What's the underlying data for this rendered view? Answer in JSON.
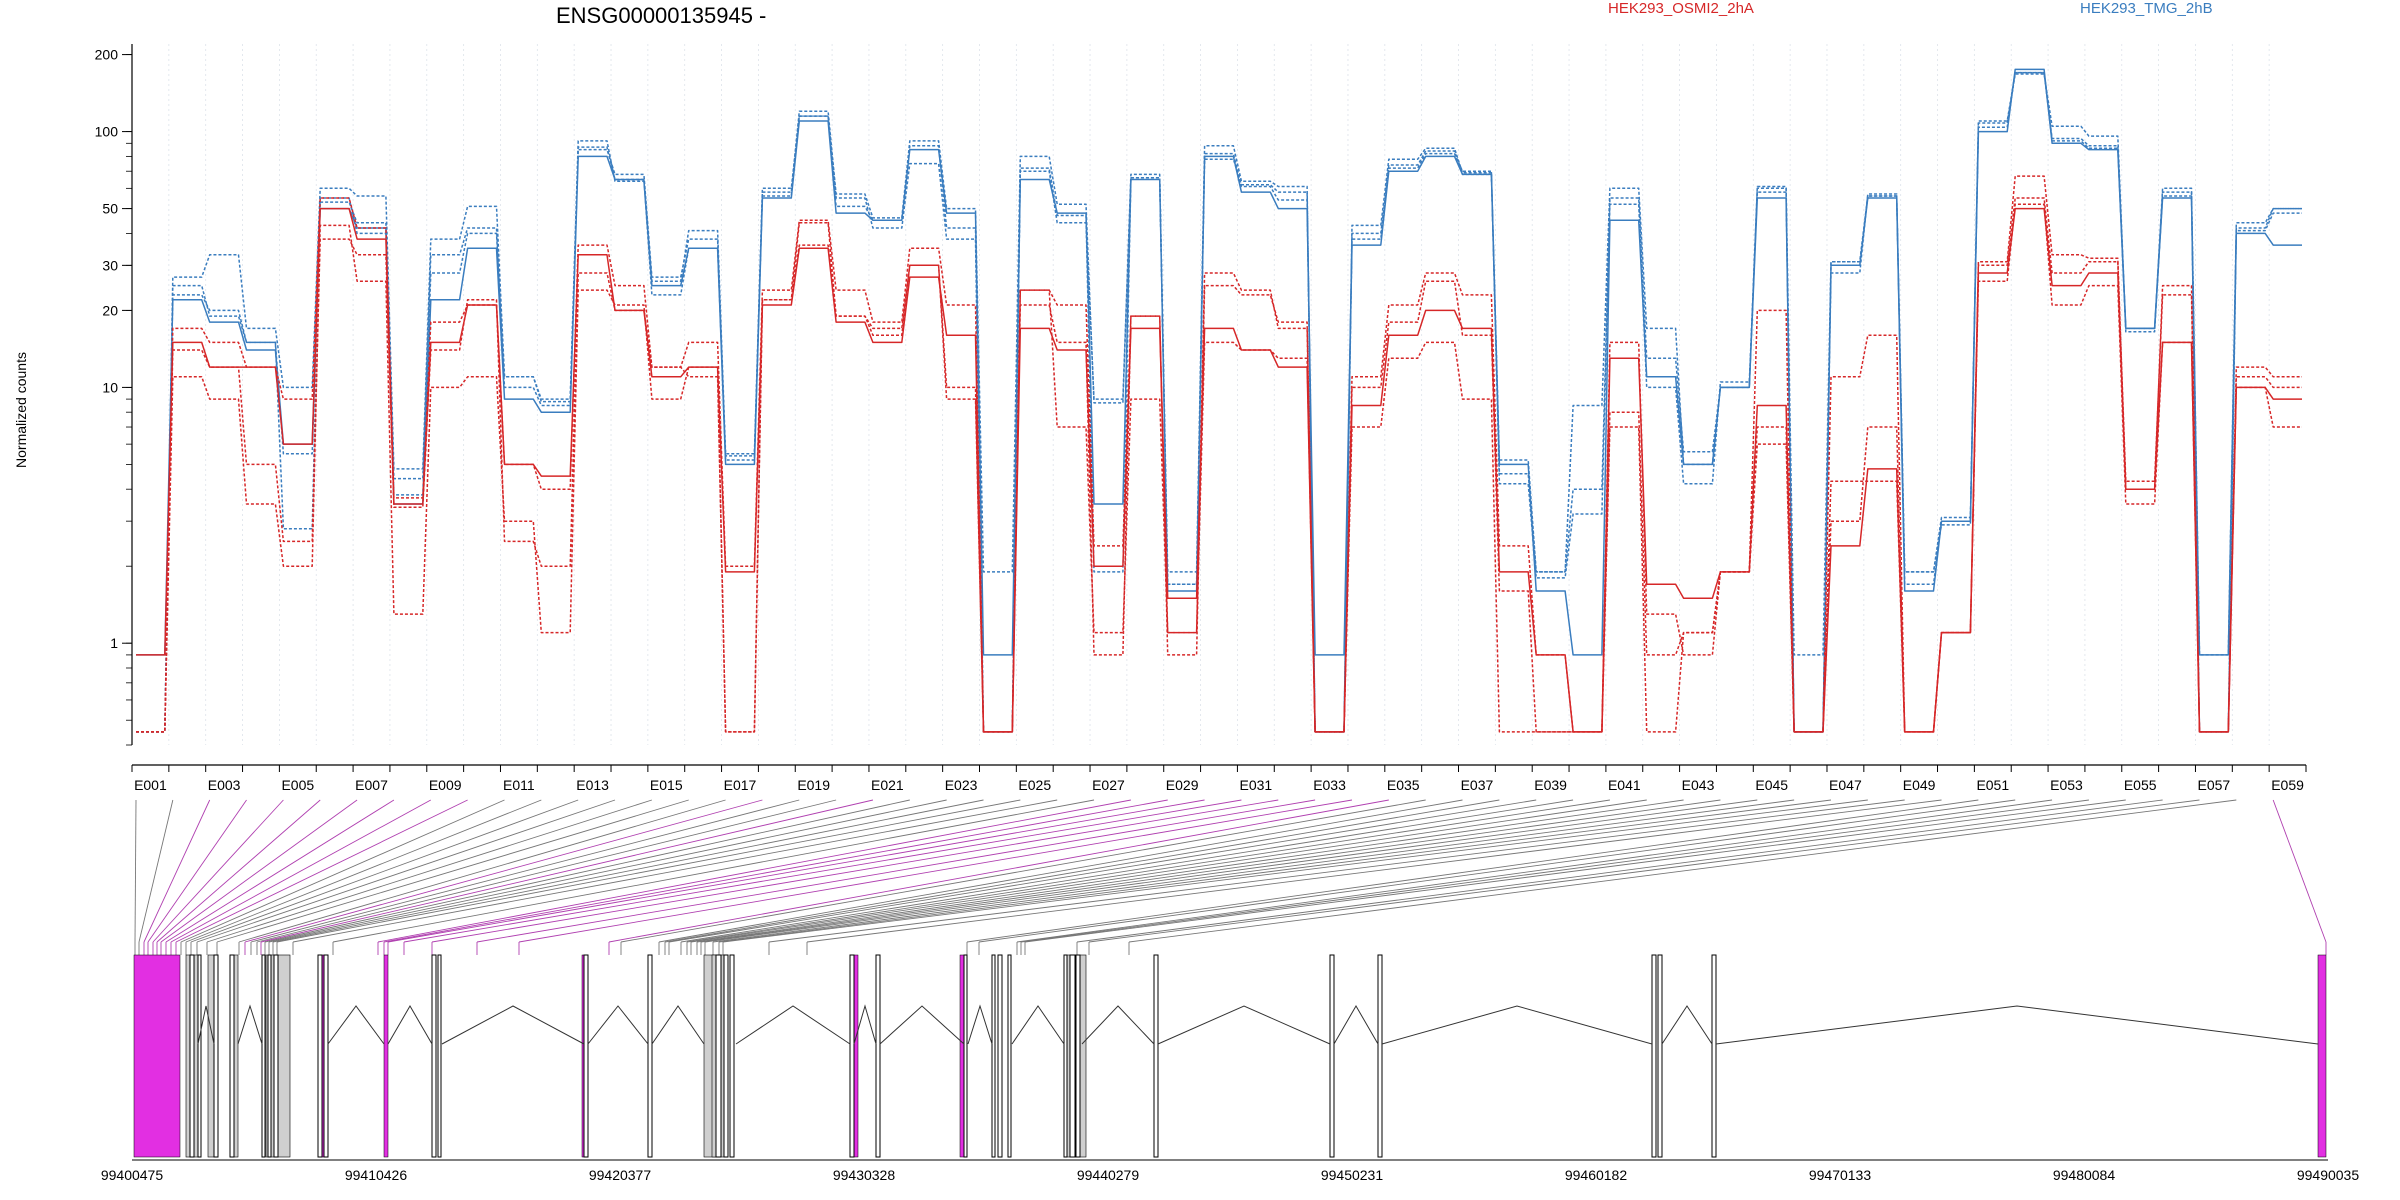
{
  "chart_data": {
    "type": "line",
    "title": "ENSG00000135945 -",
    "ylabel": "Normalized counts",
    "yscale": "log",
    "ylim": [
      0.4,
      220
    ],
    "yticks": [
      1,
      10,
      20,
      30,
      50,
      100,
      200
    ],
    "ytick_labels": [
      "1",
      "10",
      "20",
      "30",
      "50",
      "100",
      "200"
    ],
    "legend": [
      {
        "name": "HEK293_OSMI2_2hA",
        "color": "#d62728"
      },
      {
        "name": "HEK293_TMG_2hB",
        "color": "#3a7dbf"
      }
    ],
    "categories": [
      "E001",
      "E002",
      "E003",
      "E004",
      "E005",
      "E006",
      "E007",
      "E008",
      "E009",
      "E010",
      "E011",
      "E012",
      "E013",
      "E014",
      "E015",
      "E016",
      "E017",
      "E018",
      "E019",
      "E020",
      "E021",
      "E022",
      "E023",
      "E024",
      "E025",
      "E026",
      "E027",
      "E028",
      "E029",
      "E030",
      "E031",
      "E032",
      "E033",
      "E034",
      "E035",
      "E036",
      "E037",
      "E038",
      "E039",
      "E040",
      "E041",
      "E042",
      "E043",
      "E044",
      "E045",
      "E046",
      "E047",
      "E048",
      "E049",
      "E050",
      "E051",
      "E052",
      "E053",
      "E054",
      "E055",
      "E056",
      "E057",
      "E058",
      "E059"
    ],
    "tick_labels": [
      "E001",
      "E003",
      "E005",
      "E007",
      "E009",
      "E011",
      "E013",
      "E015",
      "E017",
      "E019",
      "E021",
      "E023",
      "E025",
      "E027",
      "E029",
      "E031",
      "E033",
      "E035",
      "E037",
      "E039",
      "E041",
      "E043",
      "E045",
      "E047",
      "E049",
      "E051",
      "E053",
      "E055",
      "E057",
      "E059"
    ],
    "series": [
      {
        "group": "blue",
        "color": "#3a7dbf",
        "dash": false,
        "values": [
          0.9,
          22,
          18,
          14,
          6,
          50,
          42,
          3.5,
          22,
          35,
          9,
          8,
          80,
          65,
          25,
          35,
          5,
          55,
          110,
          48,
          45,
          85,
          48,
          0.9,
          65,
          48,
          3.5,
          65,
          1.6,
          80,
          58,
          50,
          0.9,
          36,
          70,
          80,
          68,
          5,
          1.6,
          0.9,
          45,
          11,
          5,
          10,
          55,
          0.45,
          30,
          55,
          1.6,
          3,
          100,
          175,
          90,
          85,
          17,
          55,
          0.9,
          40,
          36
        ]
      },
      {
        "group": "blue",
        "color": "#3a7dbf",
        "dash": true,
        "values": [
          0.45,
          25,
          19,
          15,
          5.5,
          55,
          40,
          3.8,
          28,
          40,
          10,
          8.5,
          85,
          68,
          27,
          38,
          5.2,
          60,
          115,
          55,
          42,
          75,
          38,
          0.45,
          70,
          44,
          9,
          68,
          1.7,
          78,
          62,
          58,
          0.45,
          40,
          72,
          82,
          70,
          4.2,
          1.8,
          3.2,
          52,
          10,
          4.2,
          10.5,
          58,
          0.45,
          28,
          57,
          1.7,
          3,
          110,
          170,
          92,
          86,
          16.5,
          58,
          0.45,
          42,
          50
        ]
      },
      {
        "group": "blue",
        "color": "#3a7dbf",
        "dash": true,
        "values": [
          0.45,
          27,
          33,
          17,
          10,
          60,
          56,
          4.8,
          38,
          51,
          11,
          9,
          92,
          64,
          26,
          41,
          5.5,
          58,
          120,
          57,
          46,
          92,
          50,
          1.9,
          80,
          52,
          8.7,
          66,
          1.9,
          88,
          64,
          61,
          0.45,
          43,
          78,
          86,
          69,
          5.2,
          1.9,
          8.5,
          60,
          17,
          5,
          10,
          60,
          0.9,
          31,
          56,
          1.9,
          3.1,
          108,
          168,
          105,
          96,
          17,
          60,
          0.9,
          44,
          50
        ]
      },
      {
        "group": "blue",
        "color": "#3a7dbf",
        "dash": true,
        "values": [
          0.45,
          23,
          20,
          15,
          2.8,
          53,
          44,
          4.4,
          33,
          42,
          11,
          8.8,
          87,
          65,
          23,
          35,
          5.4,
          56,
          115,
          51,
          45,
          88,
          42,
          0.45,
          72,
          47,
          1.9,
          66,
          1.7,
          82,
          61,
          54,
          0.45,
          38,
          74,
          84,
          68,
          4.6,
          1.9,
          4,
          55,
          13,
          5.6,
          10,
          61,
          0.45,
          31,
          56,
          1.9,
          2.9,
          104,
          170,
          94,
          88,
          17,
          56,
          0.45,
          41,
          48
        ]
      },
      {
        "group": "red",
        "color": "#d62728",
        "dash": false,
        "values": [
          0.9,
          15,
          12,
          12,
          6,
          50,
          38,
          3.5,
          15,
          21,
          5,
          4.5,
          33,
          20,
          11,
          12,
          1.9,
          21,
          35,
          18,
          15,
          27,
          16,
          0.45,
          17,
          14,
          2,
          17,
          1.5,
          17,
          14,
          12,
          0.45,
          8.5,
          16,
          20,
          17,
          1.9,
          0.9,
          0.45,
          13,
          1.7,
          1.5,
          1.9,
          8.5,
          0.45,
          2.4,
          4.8,
          0.45,
          1.1,
          28,
          50,
          25,
          28,
          4,
          15,
          0.45,
          10,
          9
        ]
      },
      {
        "group": "red",
        "color": "#d62728",
        "dash": true,
        "values": [
          0.45,
          17,
          15,
          12,
          9,
          55,
          42,
          3.7,
          18,
          21,
          5,
          4,
          36,
          25,
          12,
          15,
          2,
          24,
          45,
          24,
          18,
          35,
          21,
          0.45,
          24,
          21,
          2.4,
          19,
          1.1,
          28,
          24,
          17,
          0.45,
          11,
          21,
          28,
          23,
          2.4,
          0.9,
          0.45,
          15,
          1.3,
          0.9,
          1.9,
          20,
          0.45,
          11,
          16,
          0.45,
          1.1,
          31,
          67,
          33,
          32,
          4,
          25,
          0.45,
          12,
          11
        ]
      },
      {
        "group": "red",
        "color": "#d62728",
        "dash": true,
        "values": [
          0.45,
          11,
          9,
          3.5,
          2,
          43,
          26,
          1.3,
          10,
          11,
          3,
          1.1,
          24,
          21,
          9,
          12,
          0.45,
          22,
          36,
          19,
          17,
          30,
          10,
          0.45,
          24,
          7,
          1.1,
          9,
          1.1,
          15,
          14,
          13,
          0.45,
          7,
          13,
          15,
          9,
          0.45,
          0.45,
          0.45,
          7,
          0.45,
          1.1,
          1.9,
          7,
          0.45,
          3,
          7,
          0.45,
          1.1,
          26,
          52,
          21,
          25,
          3.5,
          15,
          0.45,
          10,
          7
        ]
      },
      {
        "group": "red",
        "color": "#d62728",
        "dash": true,
        "values": [
          0.45,
          14,
          12,
          5,
          2.5,
          38,
          33,
          3.4,
          14,
          22,
          2.5,
          2,
          28,
          20,
          12,
          11,
          0.45,
          22,
          44,
          19,
          16,
          30,
          9,
          0.45,
          21,
          15,
          0.9,
          19,
          0.9,
          25,
          23,
          18,
          0.45,
          10,
          18,
          26,
          16,
          1.6,
          0.45,
          0.45,
          8,
          0.9,
          1.1,
          1.9,
          6,
          0.45,
          4.3,
          4.3,
          0.45,
          1.1,
          30,
          55,
          28,
          31,
          4.3,
          23,
          0.45,
          11,
          10
        ]
      }
    ],
    "gene_coordinates": [
      "99400475",
      "99410426",
      "99420377",
      "99430328",
      "99440279",
      "99450231",
      "99460182",
      "99470133",
      "99480084",
      "99490035"
    ],
    "grid": true,
    "legend_placement": "top"
  }
}
